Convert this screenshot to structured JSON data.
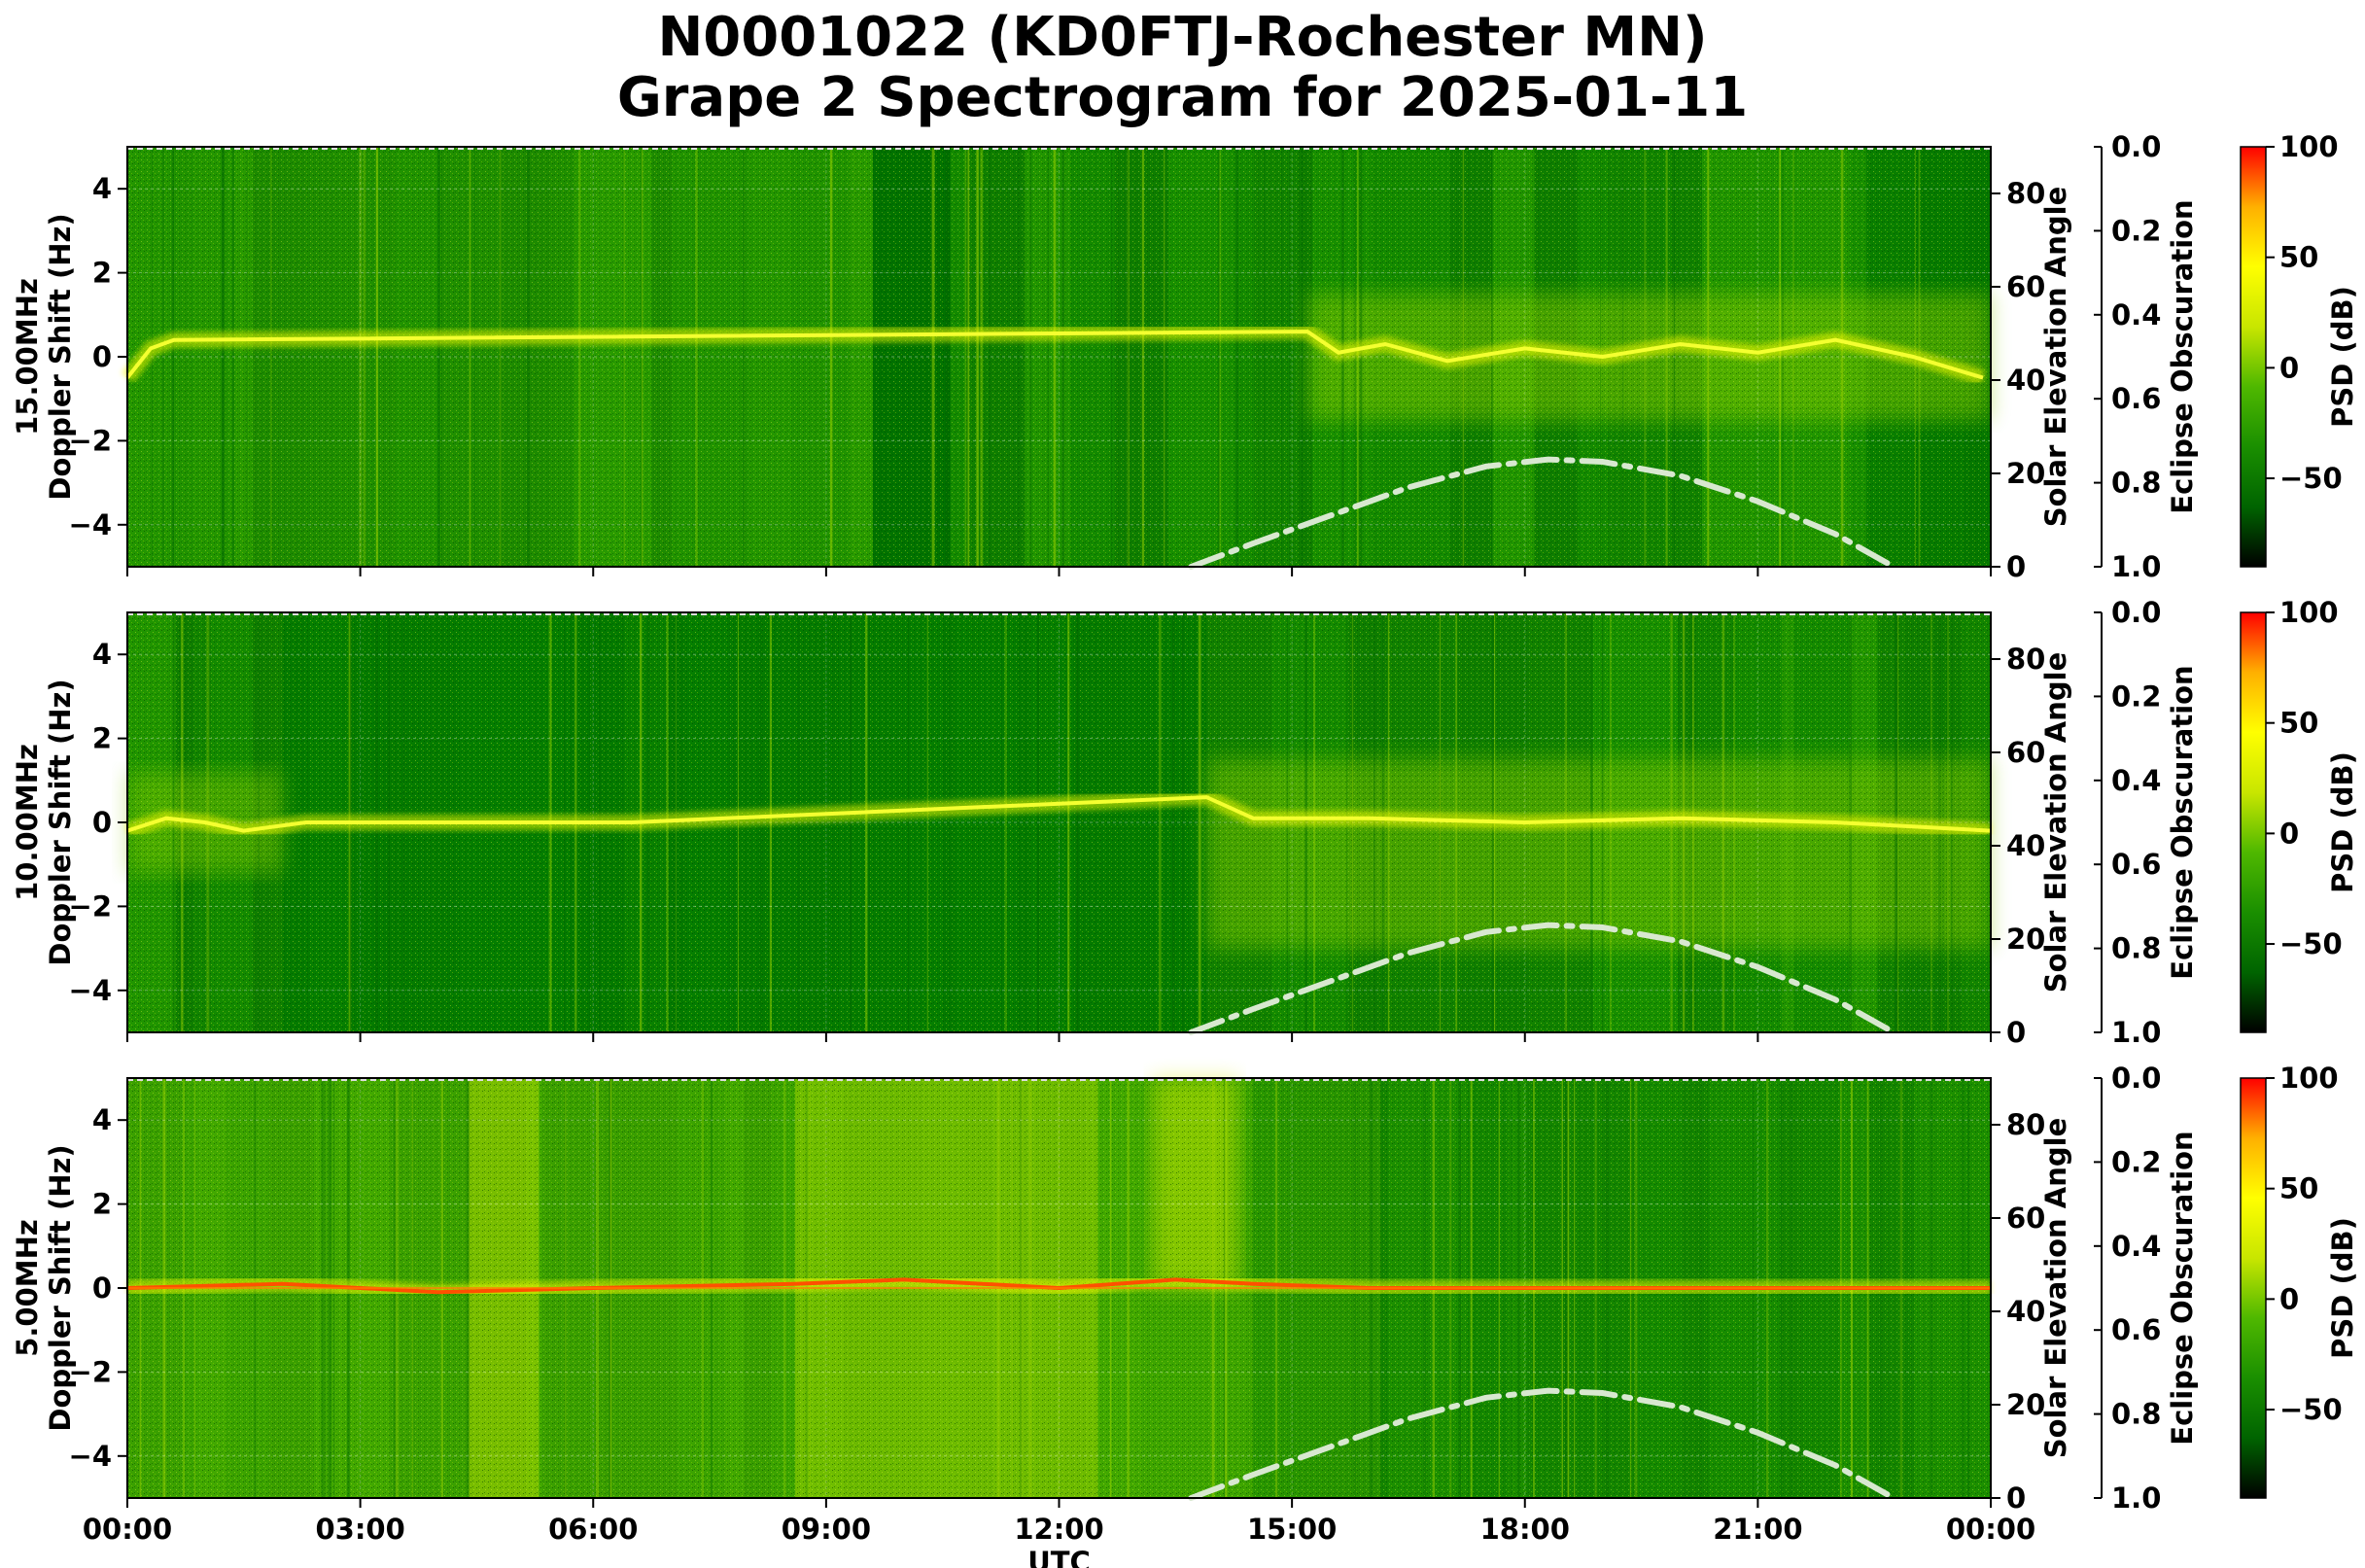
{
  "title_line1": "N0001022 (KD0FTJ-Rochester MN)",
  "title_line2": "Grape 2 Spectrogram for 2025-01-11",
  "chart_data": {
    "type": "heatmap",
    "title": "N0001022 (KD0FTJ-Rochester MN) Grape 2 Spectrogram for 2025-01-11",
    "xlabel": "UTC",
    "x_ticks": [
      "00:00",
      "03:00",
      "06:00",
      "09:00",
      "12:00",
      "15:00",
      "18:00",
      "21:00",
      "00:00"
    ],
    "xlim_hours": [
      0,
      24
    ],
    "ylim_doppler_hz": [
      -5,
      5
    ],
    "doppler_ticks": [
      -4,
      -2,
      0,
      2,
      4
    ],
    "right_axis_label": "Solar Elevation Angle",
    "elevation_ticks": [
      0,
      20,
      40,
      60,
      80
    ],
    "elevation_lim": [
      0,
      90
    ],
    "eclipse_axis_label": "Eclipse Obscuration",
    "eclipse_ticks": [
      "0.0",
      "0.2",
      "0.4",
      "0.6",
      "0.8",
      "1.0"
    ],
    "colorbar_label": "PSD (dB)",
    "colorbar_ticks": [
      100,
      50,
      0,
      -50
    ],
    "colorbar_range": [
      -90,
      100
    ],
    "colormap": [
      "#000000",
      "#006400",
      "#1a8f00",
      "#4fb800",
      "#c8e600",
      "#ffff00",
      "#ffb000",
      "#ff0000"
    ],
    "solar_elevation_curve": {
      "style": "dash-dot",
      "color": "#d8e8d0",
      "points_hours_deg": [
        [
          13.7,
          0
        ],
        [
          14.5,
          5
        ],
        [
          15.5,
          11
        ],
        [
          16.5,
          17
        ],
        [
          17.5,
          21.5
        ],
        [
          18.3,
          23
        ],
        [
          19.0,
          22.5
        ],
        [
          20.0,
          19.5
        ],
        [
          21.0,
          14
        ],
        [
          22.0,
          7
        ],
        [
          22.75,
          0
        ]
      ]
    },
    "panels": [
      {
        "ylabel_line1": "15.00MHz",
        "ylabel_line2": "Doppler Shift (Hz)",
        "carrier_trace_hours_hz": [
          [
            0.0,
            -0.5
          ],
          [
            0.3,
            0.2
          ],
          [
            0.6,
            0.4
          ],
          [
            15.2,
            0.6
          ],
          [
            15.6,
            0.1
          ],
          [
            16.2,
            0.3
          ],
          [
            17.0,
            -0.1
          ],
          [
            18.0,
            0.2
          ],
          [
            19.0,
            0.0
          ],
          [
            20.0,
            0.3
          ],
          [
            21.0,
            0.1
          ],
          [
            22.0,
            0.4
          ],
          [
            23.0,
            0.0
          ],
          [
            23.9,
            -0.5
          ]
        ]
      },
      {
        "ylabel_line1": "10.00MHz",
        "ylabel_line2": "Doppler Shift (Hz)",
        "carrier_trace_hours_hz": [
          [
            0.0,
            -0.2
          ],
          [
            0.5,
            0.1
          ],
          [
            1.0,
            0.0
          ],
          [
            1.5,
            -0.2
          ],
          [
            2.3,
            0.0
          ],
          [
            6.5,
            0.0
          ],
          [
            13.9,
            0.6
          ],
          [
            14.5,
            0.1
          ],
          [
            16.0,
            0.1
          ],
          [
            18.0,
            0.0
          ],
          [
            20.0,
            0.1
          ],
          [
            22.0,
            0.0
          ],
          [
            24.0,
            -0.2
          ]
        ]
      },
      {
        "ylabel_line1": "5.00MHz",
        "ylabel_line2": "Doppler Shift (Hz)",
        "carrier_trace_hours_hz": [
          [
            0.0,
            0.0
          ],
          [
            2.0,
            0.1
          ],
          [
            4.0,
            -0.1
          ],
          [
            6.0,
            0.0
          ],
          [
            8.6,
            0.1
          ],
          [
            10.0,
            0.2
          ],
          [
            12.0,
            0.0
          ],
          [
            13.5,
            0.2
          ],
          [
            14.5,
            0.1
          ],
          [
            16.0,
            0.0
          ],
          [
            20.0,
            0.0
          ],
          [
            24.0,
            0.0
          ]
        ]
      }
    ]
  }
}
